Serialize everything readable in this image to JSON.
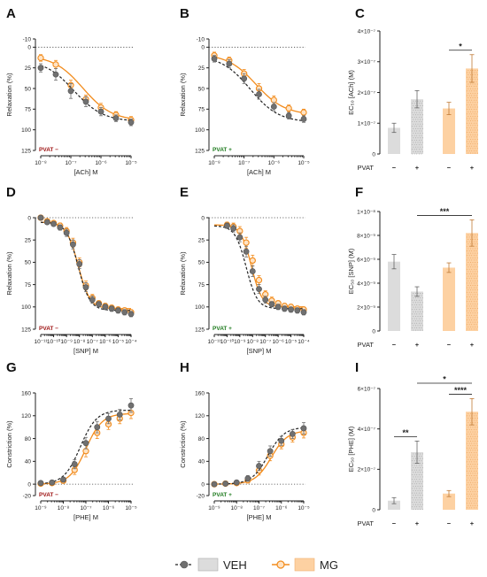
{
  "colors": {
    "veh": "#707070",
    "mg": "#f28c1d",
    "veh_bar": "#dcdcdc",
    "mg_bar": "#fdd1a2",
    "pvat_minus": "#9c1010",
    "pvat_plus": "#1d7a1d"
  },
  "legend": {
    "veh": "VEH",
    "mg": "MG"
  },
  "chart_data": [
    {
      "id": "A",
      "type": "line",
      "panel": "A",
      "ylabel": "Relaxation (%)",
      "xlabel": "[ACh] M",
      "pvat_label": "PVAT −",
      "pvat_color": "minus",
      "y_reversed": true,
      "ylim": [
        -10,
        125
      ],
      "yticks": [
        -10,
        0,
        25,
        50,
        75,
        100,
        125
      ],
      "xlim": [
        -8,
        -5
      ],
      "xticks": [
        -8,
        -7,
        -6,
        -5
      ],
      "xticklabels": [
        "10⁻⁸",
        "10⁻⁷",
        "10⁻⁶",
        "10⁻⁵"
      ],
      "x": [
        -8,
        -7.5,
        -7,
        -6.5,
        -6,
        -5.5,
        -5
      ],
      "series": [
        {
          "name": "VEH",
          "values": [
            25,
            33,
            53,
            66,
            78,
            86,
            91
          ],
          "errors": [
            5,
            7,
            9,
            6,
            5,
            4,
            4
          ],
          "curve": {
            "bottom": 15,
            "top": 90,
            "logec50": -6.9,
            "hill": 0.9
          }
        },
        {
          "name": "MG",
          "values": [
            13,
            21,
            46,
            63,
            73,
            82,
            88
          ],
          "errors": [
            4,
            5,
            6,
            5,
            5,
            4,
            4
          ],
          "curve": {
            "bottom": 10,
            "top": 89,
            "logec50": -6.6,
            "hill": 0.9
          }
        }
      ]
    },
    {
      "id": "B",
      "type": "line",
      "panel": "B",
      "ylabel": "Relaxation (%)",
      "xlabel": "[ACh] M",
      "pvat_label": "PVAT +",
      "pvat_color": "plus",
      "y_reversed": true,
      "ylim": [
        -10,
        125
      ],
      "yticks": [
        -10,
        0,
        25,
        50,
        75,
        100,
        125
      ],
      "xlim": [
        -8,
        -5
      ],
      "xticks": [
        -8,
        -7,
        -6,
        -5
      ],
      "xticklabels": [
        "10⁻⁸",
        "10⁻⁷",
        "10⁻⁶",
        "10⁻⁵"
      ],
      "x": [
        -8,
        -7.5,
        -7,
        -6.5,
        -6,
        -5.5,
        -5
      ],
      "series": [
        {
          "name": "VEH",
          "values": [
            14,
            20,
            38,
            57,
            72,
            83,
            87
          ],
          "errors": [
            4,
            5,
            6,
            6,
            5,
            4,
            4
          ],
          "curve": {
            "bottom": 10,
            "top": 91,
            "logec50": -6.8,
            "hill": 0.9
          }
        },
        {
          "name": "MG",
          "values": [
            10,
            16,
            32,
            50,
            64,
            74,
            79
          ],
          "errors": [
            4,
            4,
            5,
            6,
            5,
            4,
            4
          ],
          "curve": {
            "bottom": 8,
            "top": 82,
            "logec50": -6.6,
            "hill": 0.9
          }
        }
      ]
    },
    {
      "id": "C",
      "type": "bar",
      "panel": "C",
      "ylabel": "EC₅₀ [ACh] (M)",
      "ylim": [
        0,
        4e-07
      ],
      "yticks": [
        "0",
        "1×10⁻⁷",
        "2×10⁻⁷",
        "3×10⁻⁷",
        "4×10⁻⁷"
      ],
      "ytick_values": [
        0,
        1e-07,
        2e-07,
        3e-07,
        4e-07
      ],
      "groups": [
        "VEH",
        "VEH",
        "MG",
        "MG"
      ],
      "pvat": [
        "−",
        "+",
        "−",
        "+"
      ],
      "pvat_label": "PVAT",
      "values": [
        8.5e-08,
        1.78e-07,
        1.48e-07,
        2.78e-07
      ],
      "errors": [
        1.5e-08,
        2.8e-08,
        2e-08,
        4.5e-08
      ],
      "significance": [
        {
          "from": 2,
          "to": 3,
          "label": "*"
        }
      ]
    },
    {
      "id": "D",
      "type": "line",
      "panel": "D",
      "ylabel": "Relaxation (%)",
      "xlabel": "[SNP] M",
      "pvat_label": "PVAT −",
      "pvat_color": "minus",
      "y_reversed": true,
      "ylim": [
        0,
        125
      ],
      "yticks": [
        0,
        25,
        50,
        75,
        100,
        125
      ],
      "xlim": [
        -11,
        -4
      ],
      "xticks": [
        -11,
        -10,
        -9,
        -8,
        -7,
        -6,
        -5,
        -4
      ],
      "xticklabels": [
        "10⁻¹¹",
        "10⁻¹⁰",
        "10⁻⁹",
        "10⁻⁸",
        "10⁻⁷",
        "10⁻⁶",
        "10⁻⁵",
        "10⁻⁴"
      ],
      "x": [
        -11,
        -10.5,
        -10,
        -9.5,
        -9,
        -8.5,
        -8,
        -7.5,
        -7,
        -6.5,
        -6,
        -5.5,
        -5,
        -4.5,
        -4
      ],
      "series": [
        {
          "name": "VEH",
          "values": [
            0,
            5,
            7,
            11,
            17,
            30,
            52,
            78,
            92,
            97,
            100,
            102,
            104,
            106,
            108
          ],
          "errors": [
            1,
            2,
            2,
            3,
            4,
            5,
            5,
            5,
            4,
            3,
            3,
            3,
            3,
            3,
            3
          ],
          "curve": {
            "bottom": 5,
            "top": 104,
            "logec50": -8.1,
            "hill": 0.95
          }
        },
        {
          "name": "MG",
          "values": [
            0,
            4,
            6,
            9,
            15,
            28,
            50,
            76,
            90,
            96,
            99,
            101,
            103,
            104,
            106
          ],
          "errors": [
            1,
            2,
            2,
            3,
            4,
            5,
            5,
            5,
            4,
            3,
            3,
            3,
            3,
            3,
            3
          ],
          "curve": {
            "bottom": 5,
            "top": 102,
            "logec50": -8.1,
            "hill": 0.95
          }
        }
      ]
    },
    {
      "id": "E",
      "type": "line",
      "panel": "E",
      "ylabel": "Relaxation (%)",
      "xlabel": "[SNP] M",
      "pvat_label": "PVAT +",
      "pvat_color": "plus",
      "y_reversed": true,
      "ylim": [
        0,
        125
      ],
      "yticks": [
        0,
        25,
        50,
        75,
        100,
        125
      ],
      "xlim": [
        -11,
        -4
      ],
      "xticks": [
        -11,
        -10,
        -9,
        -8,
        -7,
        -6,
        -5,
        -4
      ],
      "xticklabels": [
        "10⁻¹¹",
        "10⁻¹⁰",
        "10⁻⁹",
        "10⁻⁸",
        "10⁻⁷",
        "10⁻⁶",
        "10⁻⁵",
        "10⁻⁴"
      ],
      "x": [
        -10,
        -9.5,
        -9,
        -8.5,
        -8,
        -7.5,
        -7,
        -6.5,
        -6,
        -5.5,
        -5,
        -4.5,
        -4
      ],
      "series": [
        {
          "name": "VEH",
          "values": [
            9,
            12,
            22,
            38,
            60,
            80,
            92,
            97,
            100,
            102,
            103,
            104,
            106
          ],
          "errors": [
            3,
            4,
            5,
            6,
            6,
            5,
            4,
            3,
            3,
            3,
            3,
            3,
            3
          ],
          "curve": {
            "bottom": 9,
            "top": 102,
            "logec50": -8.5,
            "hill": 1.0
          }
        },
        {
          "name": "MG",
          "values": [
            8,
            10,
            15,
            28,
            48,
            70,
            86,
            93,
            96,
            99,
            100,
            102,
            103
          ],
          "errors": [
            3,
            4,
            5,
            6,
            6,
            5,
            4,
            4,
            3,
            3,
            3,
            3,
            3
          ],
          "curve": {
            "bottom": 8,
            "top": 100,
            "logec50": -8.1,
            "hill": 1.05
          }
        }
      ]
    },
    {
      "id": "F",
      "type": "bar",
      "panel": "F",
      "ylabel": "EC₅₀ [SNP] (M)",
      "ylim": [
        0,
        1e-08
      ],
      "yticks": [
        "0",
        "2×10⁻⁹",
        "4×10⁻⁹",
        "6×10⁻⁹",
        "8×10⁻⁹",
        "1×10⁻⁸"
      ],
      "ytick_values": [
        0,
        2e-09,
        4e-09,
        6e-09,
        8e-09,
        1e-08
      ],
      "groups": [
        "VEH",
        "VEH",
        "MG",
        "MG"
      ],
      "pvat": [
        "−",
        "+",
        "−",
        "+"
      ],
      "pvat_label": "PVAT",
      "values": [
        5.8e-09,
        3.3e-09,
        5.3e-09,
        8.2e-09
      ],
      "errors": [
        6e-10,
        4e-10,
        4e-10,
        1.1e-09
      ],
      "significance": [
        {
          "from": 1,
          "to": 3,
          "label": "***"
        }
      ]
    },
    {
      "id": "G",
      "type": "line",
      "panel": "G",
      "ylabel": "Constriction (%)",
      "xlabel": "[PHE] M",
      "pvat_label": "PVAT −",
      "pvat_color": "minus",
      "y_reversed": false,
      "ylim": [
        -20,
        160
      ],
      "yticks": [
        -20,
        0,
        40,
        80,
        120,
        160
      ],
      "xlim": [
        -9,
        -5
      ],
      "xticks": [
        -9,
        -8,
        -7,
        -6,
        -5
      ],
      "xticklabels": [
        "10⁻⁹",
        "10⁻⁸",
        "10⁻⁷",
        "10⁻⁶",
        "10⁻⁵"
      ],
      "x": [
        -9,
        -8.5,
        -8,
        -7.5,
        -7,
        -6.5,
        -6,
        -5.5,
        -5
      ],
      "series": [
        {
          "name": "VEH",
          "values": [
            2,
            3,
            8,
            35,
            72,
            100,
            115,
            122,
            138
          ],
          "errors": [
            2,
            2,
            4,
            8,
            10,
            10,
            9,
            9,
            12
          ],
          "curve": {
            "bottom": 0,
            "top": 130,
            "logec50": -7.25,
            "hill": 1.2
          }
        },
        {
          "name": "MG",
          "values": [
            1,
            2,
            6,
            25,
            58,
            90,
            105,
            115,
            125
          ],
          "errors": [
            2,
            2,
            4,
            8,
            10,
            10,
            9,
            9,
            10
          ],
          "curve": {
            "bottom": 0,
            "top": 124,
            "logec50": -7.0,
            "hill": 1.2
          }
        }
      ]
    },
    {
      "id": "H",
      "type": "line",
      "panel": "H",
      "ylabel": "Constriction (%)",
      "xlabel": "[PHE] M",
      "pvat_label": "PVAT +",
      "pvat_color": "plus",
      "y_reversed": false,
      "ylim": [
        -20,
        160
      ],
      "yticks": [
        -20,
        0,
        40,
        80,
        120,
        160
      ],
      "xlim": [
        -9,
        -5
      ],
      "xticks": [
        -9,
        -8,
        -7,
        -6,
        -5
      ],
      "xticklabels": [
        "10⁻⁹",
        "10⁻⁸",
        "10⁻⁷",
        "10⁻⁶",
        "10⁻⁵"
      ],
      "x": [
        -9,
        -8.5,
        -8,
        -7.5,
        -7,
        -6.5,
        -6,
        -5.5,
        -5
      ],
      "series": [
        {
          "name": "VEH",
          "values": [
            0,
            1,
            3,
            10,
            32,
            58,
            76,
            88,
            98
          ],
          "errors": [
            1,
            1,
            3,
            5,
            8,
            9,
            8,
            8,
            10
          ],
          "curve": {
            "bottom": 0,
            "top": 100,
            "logec50": -6.6,
            "hill": 1.2
          }
        },
        {
          "name": "MG",
          "values": [
            0,
            1,
            2,
            7,
            24,
            50,
            70,
            82,
            90
          ],
          "errors": [
            1,
            1,
            3,
            5,
            8,
            9,
            8,
            8,
            9
          ],
          "curve": {
            "bottom": 0,
            "top": 94,
            "logec50": -6.45,
            "hill": 1.2
          }
        }
      ]
    },
    {
      "id": "I",
      "type": "bar",
      "panel": "I",
      "ylabel": "EC₅₀ [PHE] (M)",
      "ylim": [
        0,
        6e-07
      ],
      "yticks": [
        "0",
        "2×10⁻⁷",
        "4×10⁻⁷",
        "6×10⁻⁷"
      ],
      "ytick_values": [
        0,
        2e-07,
        4e-07,
        6e-07
      ],
      "groups": [
        "VEH",
        "VEH",
        "MG",
        "MG"
      ],
      "pvat": [
        "−",
        "+",
        "−",
        "+"
      ],
      "pvat_label": "PVAT",
      "values": [
        4.5e-08,
        2.85e-07,
        8e-08,
        4.85e-07
      ],
      "errors": [
        1.5e-08,
        5.5e-08,
        1.5e-08,
        6.5e-08
      ],
      "significance": [
        {
          "from": 0,
          "to": 1,
          "label": "**"
        },
        {
          "from": 2,
          "to": 3,
          "label": "****"
        },
        {
          "from": 1,
          "to": 3,
          "label": "*"
        }
      ]
    }
  ]
}
